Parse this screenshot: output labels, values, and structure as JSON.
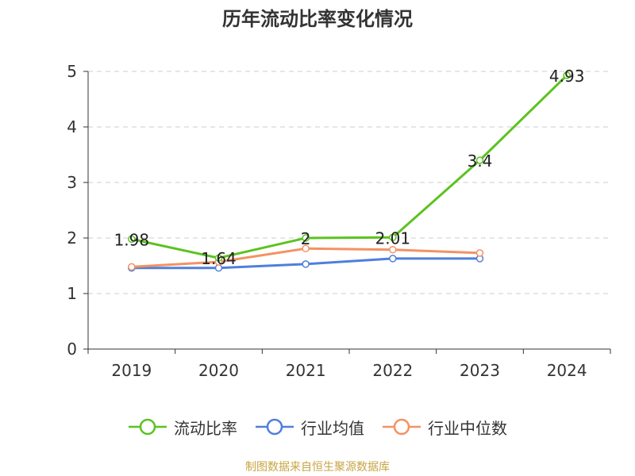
{
  "source_note": "制图数据来自恒生聚源数据库",
  "colors": {
    "series_current_ratio": "#5cc220",
    "series_industry_mean": "#4f7fdc",
    "series_industry_median": "#f39263",
    "grid": "#cccccc",
    "axis": "#333333",
    "text": "#333333",
    "source": "#c8a443"
  },
  "legend": [
    {
      "label": "流动比率",
      "icon": "circle-line-icon",
      "color": "#5cc220"
    },
    {
      "label": "行业均值",
      "icon": "circle-line-icon",
      "color": "#4f7fdc"
    },
    {
      "label": "行业中位数",
      "icon": "circle-line-icon",
      "color": "#f39263"
    }
  ],
  "chart_data": {
    "type": "line",
    "title": "历年流动比率变化情况",
    "xlabel": "",
    "ylabel": "",
    "categories": [
      "2019",
      "2020",
      "2021",
      "2022",
      "2023",
      "2024"
    ],
    "ylim": [
      0,
      5
    ],
    "yticks": [
      "0",
      "1",
      "2",
      "3",
      "4",
      "5"
    ],
    "grid": true,
    "legend_position": "bottom",
    "series": [
      {
        "name": "流动比率",
        "color": "#5cc220",
        "values": [
          1.98,
          1.64,
          2,
          2.01,
          3.4,
          4.93
        ],
        "data_labels": [
          "1.98",
          "1.64",
          "2",
          "2.01",
          "3.4",
          "4.93"
        ]
      },
      {
        "name": "行业均值",
        "color": "#4f7fdc",
        "values": [
          1.46,
          1.46,
          1.53,
          1.63,
          1.63,
          null
        ]
      },
      {
        "name": "行业中位数",
        "color": "#f39263",
        "values": [
          1.48,
          1.57,
          1.81,
          1.79,
          1.73,
          null
        ]
      }
    ]
  }
}
